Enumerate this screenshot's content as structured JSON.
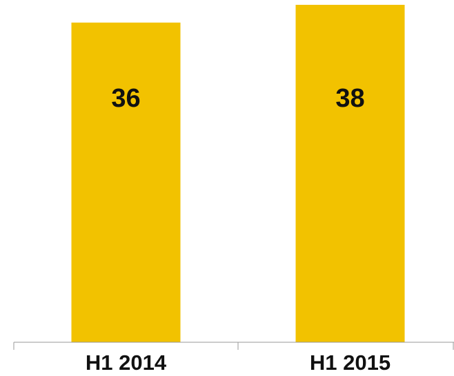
{
  "chart_data": {
    "type": "bar",
    "categories": [
      "H1 2014",
      "H1 2015"
    ],
    "values": [
      36,
      38
    ],
    "color": "#f2c200"
  }
}
